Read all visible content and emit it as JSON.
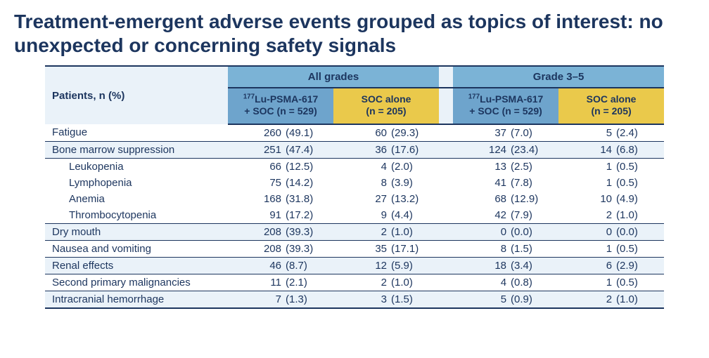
{
  "title": "Treatment-emergent adverse events grouped as topics of interest: no unexpected or concerning safety signals",
  "table": {
    "row_header_label": "Patients, n (%)",
    "groups": [
      {
        "label": "All grades"
      },
      {
        "label": "Grade 3–5"
      }
    ],
    "arms": [
      {
        "label_prefix_sup": "177",
        "label_main": "Lu-PSMA-617",
        "label_line2": "+ SOC (n = 529)",
        "header_bg": "#6ea4cc"
      },
      {
        "label_prefix_sup": "",
        "label_main": "SOC alone",
        "label_line2": "(n = 205)",
        "header_bg": "#eac94b"
      }
    ],
    "colors": {
      "title_text": "#1c355e",
      "group_header_bg": "#7bb3d6",
      "arm_blue_bg": "#6ea4cc",
      "arm_yellow_bg": "#eac94b",
      "row_alt_bg": "#eaf2f9",
      "rule_color": "#1c355e",
      "background": "#ffffff"
    },
    "rows": [
      {
        "label": "Fatigue",
        "indent": false,
        "alt": false,
        "rule": true,
        "cells": [
          {
            "n": "260",
            "pct": "(49.1)"
          },
          {
            "n": "60",
            "pct": "(29.3)"
          },
          {
            "n": "37",
            "pct": "(7.0)"
          },
          {
            "n": "5",
            "pct": "(2.4)"
          }
        ]
      },
      {
        "label": "Bone marrow suppression",
        "indent": false,
        "alt": true,
        "rule": true,
        "cells": [
          {
            "n": "251",
            "pct": "(47.4)"
          },
          {
            "n": "36",
            "pct": "(17.6)"
          },
          {
            "n": "124",
            "pct": "(23.4)"
          },
          {
            "n": "14",
            "pct": "(6.8)"
          }
        ]
      },
      {
        "label": "Leukopenia",
        "indent": true,
        "alt": false,
        "rule": false,
        "cells": [
          {
            "n": "66",
            "pct": "(12.5)"
          },
          {
            "n": "4",
            "pct": "(2.0)"
          },
          {
            "n": "13",
            "pct": "(2.5)"
          },
          {
            "n": "1",
            "pct": "(0.5)"
          }
        ]
      },
      {
        "label": "Lymphopenia",
        "indent": true,
        "alt": false,
        "rule": false,
        "cells": [
          {
            "n": "75",
            "pct": "(14.2)"
          },
          {
            "n": "8",
            "pct": "(3.9)"
          },
          {
            "n": "41",
            "pct": "(7.8)"
          },
          {
            "n": "1",
            "pct": "(0.5)"
          }
        ]
      },
      {
        "label": "Anemia",
        "indent": true,
        "alt": false,
        "rule": false,
        "cells": [
          {
            "n": "168",
            "pct": "(31.8)"
          },
          {
            "n": "27",
            "pct": "(13.2)"
          },
          {
            "n": "68",
            "pct": "(12.9)"
          },
          {
            "n": "10",
            "pct": "(4.9)"
          }
        ]
      },
      {
        "label": "Thrombocytopenia",
        "indent": true,
        "alt": false,
        "rule": true,
        "cells": [
          {
            "n": "91",
            "pct": "(17.2)"
          },
          {
            "n": "9",
            "pct": "(4.4)"
          },
          {
            "n": "42",
            "pct": "(7.9)"
          },
          {
            "n": "2",
            "pct": "(1.0)"
          }
        ]
      },
      {
        "label": "Dry mouth",
        "indent": false,
        "alt": true,
        "rule": true,
        "cells": [
          {
            "n": "208",
            "pct": "(39.3)"
          },
          {
            "n": "2",
            "pct": "(1.0)"
          },
          {
            "n": "0",
            "pct": "(0.0)"
          },
          {
            "n": "0",
            "pct": "(0.0)"
          }
        ]
      },
      {
        "label": "Nausea and vomiting",
        "indent": false,
        "alt": false,
        "rule": true,
        "cells": [
          {
            "n": "208",
            "pct": "(39.3)"
          },
          {
            "n": "35",
            "pct": "(17.1)"
          },
          {
            "n": "8",
            "pct": "(1.5)"
          },
          {
            "n": "1",
            "pct": "(0.5)"
          }
        ]
      },
      {
        "label": "Renal effects",
        "indent": false,
        "alt": true,
        "rule": true,
        "cells": [
          {
            "n": "46",
            "pct": "(8.7)"
          },
          {
            "n": "12",
            "pct": "(5.9)"
          },
          {
            "n": "18",
            "pct": "(3.4)"
          },
          {
            "n": "6",
            "pct": "(2.9)"
          }
        ]
      },
      {
        "label": "Second primary malignancies",
        "indent": false,
        "alt": false,
        "rule": true,
        "cells": [
          {
            "n": "11",
            "pct": "(2.1)"
          },
          {
            "n": "2",
            "pct": "(1.0)"
          },
          {
            "n": "4",
            "pct": "(0.8)"
          },
          {
            "n": "1",
            "pct": "(0.5)"
          }
        ]
      },
      {
        "label": "Intracranial hemorrhage",
        "indent": false,
        "alt": true,
        "rule": false,
        "cells": [
          {
            "n": "7",
            "pct": "(1.3)"
          },
          {
            "n": "3",
            "pct": "(1.5)"
          },
          {
            "n": "5",
            "pct": "(0.9)"
          },
          {
            "n": "2",
            "pct": "(1.0)"
          }
        ]
      }
    ]
  }
}
